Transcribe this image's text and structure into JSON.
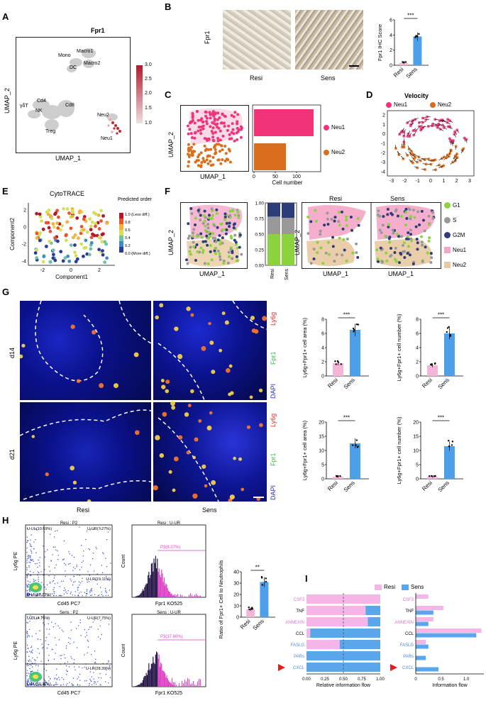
{
  "panel_letters": [
    "A",
    "B",
    "C",
    "D",
    "E",
    "F",
    "G",
    "H",
    "I"
  ],
  "A": {
    "title": "Fpr1",
    "xlabel": "UMAP_1",
    "ylabel": "UMAP_2",
    "cluster_labels": [
      "Macro1",
      "Mono",
      "Macro2",
      "DC",
      "Cd4",
      "γδT",
      "NK",
      "Cd8",
      "Treg",
      "Neu2",
      "Neu1"
    ],
    "colorbar_ticks": [
      "3.0",
      "2.5",
      "2.0",
      "1.5",
      "1.0"
    ],
    "colorbar_colors": [
      "#b2182b",
      "#f0e0e0"
    ]
  },
  "B": {
    "row_label": "Fpr1",
    "image_labels": [
      "Resi",
      "Sens"
    ],
    "chart_data": {
      "type": "bar",
      "categories": [
        "Resi",
        "Sens"
      ],
      "values": [
        0.3,
        3.8
      ],
      "ylabel": "Fpr1 IHC Score",
      "ylim": [
        0,
        6
      ],
      "yticks": [
        "0",
        "2",
        "4",
        "6"
      ],
      "significance": "***",
      "colors": [
        "#f4b6d6",
        "#4c9fe8"
      ]
    }
  },
  "C": {
    "ylabel": "UMAP_2",
    "xlabel": "UMAP_1",
    "legend": [
      "Neu1",
      "Neu2"
    ],
    "colors": [
      "#f2337a",
      "#d96f1d"
    ],
    "chart_data": {
      "type": "bar",
      "orientation": "horizontal",
      "categories": [
        "Neu1",
        "Neu2"
      ],
      "values": [
        140,
        75
      ],
      "xlabel": "Cell number",
      "xticks": [
        "0",
        "50",
        "100"
      ],
      "xlim": [
        0,
        150
      ]
    }
  },
  "D": {
    "title": "Velocity",
    "legend": [
      "Neu1",
      "Neu2"
    ],
    "xticks": [
      "-3",
      "-2",
      "-1",
      "0",
      "1",
      "2",
      "3"
    ],
    "yticks": [
      "2",
      "1",
      "0",
      "-1",
      "-2",
      "-3",
      "-4"
    ]
  },
  "E": {
    "title": "CytoTRACE",
    "xlabel": "Component1",
    "ylabel": "Component2",
    "xticks": [
      "-2",
      "0",
      "2"
    ],
    "yticks": [
      "2",
      "0",
      "-2",
      "-4"
    ],
    "legend_title": "Predicted order",
    "legend_ticks": [
      "1.0 (Less diff.)",
      "0.8",
      "0.6",
      "0.4",
      "0.2",
      "0.0 (More diff.)"
    ]
  },
  "F": {
    "ylabel": "UMAP_2",
    "xlabel": "UMAP_1",
    "split_titles": [
      "Resi",
      "Sens"
    ],
    "legend": [
      "G1",
      "S",
      "G2M",
      "Neu1",
      "Neu2"
    ],
    "legend_colors": [
      "#8bd33c",
      "#999999",
      "#2d3d7a",
      "#f4a6c8",
      "#e8c9a0"
    ],
    "chart_data": {
      "type": "bar",
      "stacked": true,
      "categories": [
        "Resi",
        "Sens"
      ],
      "series": [
        {
          "name": "G1",
          "values": [
            0.5,
            0.5
          ]
        },
        {
          "name": "S",
          "values": [
            0.28,
            0.26
          ]
        },
        {
          "name": "G2M",
          "values": [
            0.22,
            0.24
          ]
        }
      ],
      "yticks": [
        "1.00",
        "0.75",
        "0.50",
        "0.25",
        "0.00"
      ]
    }
  },
  "G": {
    "row_labels": [
      "d14",
      "d21"
    ],
    "channel_labels": [
      "Ly6g",
      "Fpr1",
      "DAPI"
    ],
    "column_labels": [
      "Resi",
      "Sens"
    ],
    "charts": [
      {
        "type": "bar",
        "categories": [
          "Resi",
          "Sens"
        ],
        "values": [
          1.8,
          6.5
        ],
        "ylabel": "Ly6g+Fpr1+ cell area (%)",
        "yticks": [
          "0",
          "2",
          "4",
          "6",
          "8"
        ],
        "ylim": [
          0,
          8
        ],
        "significance": "***"
      },
      {
        "type": "bar",
        "categories": [
          "Resi",
          "Sens"
        ],
        "values": [
          1.5,
          6.0
        ],
        "ylabel": "Ly6g+Fpr1+ cell number (%)",
        "yticks": [
          "0",
          "2",
          "4",
          "6",
          "8"
        ],
        "ylim": [
          0,
          8
        ],
        "significance": "***"
      },
      {
        "type": "bar",
        "categories": [
          "Resi",
          "Sens"
        ],
        "values": [
          0.7,
          12.5
        ],
        "ylabel": "Ly6g+Fpr1+ cell area (%)",
        "yticks": [
          "0",
          "5",
          "10",
          "15",
          "20"
        ],
        "ylim": [
          0,
          20
        ],
        "significance": "***"
      },
      {
        "type": "bar",
        "categories": [
          "Resi",
          "Sens"
        ],
        "values": [
          0.7,
          11.5
        ],
        "ylabel": "Ly6g+Fpr1+ cell number (%)",
        "yticks": [
          "0",
          "5",
          "10",
          "15",
          "20"
        ],
        "ylim": [
          0,
          20
        ],
        "significance": "***"
      }
    ]
  },
  "H": {
    "flow_plots": [
      {
        "title": "Resi : P2",
        "ul": "U-UL(10.59%)",
        "ur": "U-UR(7.27%)",
        "ll": "U-LL(63.03%)",
        "lr": "U-LR(19.11%)"
      },
      {
        "title": "Sens : P2",
        "ul": "U-UL(4.76%)",
        "ur": "U-UR(7.75%)",
        "ll": "U-LL(59.11%)",
        "lr": "U-LR(28.39%)"
      }
    ],
    "flow_xlabel": "Cd45 PC7",
    "flow_ylabel": "Ly6g PE",
    "hist_plots": [
      {
        "title": "Resi : U-UR",
        "gate": "P3(8.07%)"
      },
      {
        "title": "Sens : U-UR",
        "gate": "P3(37.60%)"
      }
    ],
    "hist_xlabel": "Fpr1 KO525",
    "hist_ylabel": "Count",
    "chart_data": {
      "type": "bar",
      "categories": [
        "Resi",
        "Sens"
      ],
      "values": [
        7,
        31
      ],
      "ylabel": "Ratio of Fpr1+ Cell to Neutrophils (%)",
      "yticks": [
        "0",
        "10",
        "20",
        "30",
        "40"
      ],
      "ylim": [
        0,
        40
      ],
      "significance": "**"
    }
  },
  "I": {
    "legend": [
      "Resi",
      "Sens"
    ],
    "colors": [
      "#f4b6e6",
      "#5aa6ea"
    ],
    "chart_data": [
      {
        "type": "bar",
        "stacked": true,
        "orientation": "horizontal",
        "categories": [
          "CSF3",
          "TNF",
          "ANNEXIN",
          "CCL",
          "FASLG",
          "PARs",
          "CXCL"
        ],
        "series": [
          {
            "name": "Resi",
            "values": [
              1.0,
              0.8,
              0.83,
              0.05,
              0.45,
              0.0,
              0.0
            ]
          },
          {
            "name": "Sens",
            "values": [
              0.0,
              0.2,
              0.17,
              0.95,
              0.55,
              1.0,
              1.0
            ]
          }
        ],
        "xlabel": "Relative information flow",
        "xticks": [
          "0.00",
          "0.25",
          "0.50",
          "0.75",
          "1.00"
        ]
      },
      {
        "type": "bar",
        "orientation": "horizontal",
        "categories": [
          "CSF3",
          "TNF",
          "ANNEXIN",
          "CCL",
          "FASLG",
          "PARs",
          "CXCL"
        ],
        "series": [
          {
            "name": "Resi",
            "values": [
              0.25,
              0.55,
              0.35,
              1.3,
              0.2,
              0.0,
              0.0
            ]
          },
          {
            "name": "Sens",
            "values": [
              0.0,
              0.35,
              0.25,
              1.2,
              0.25,
              0.2,
              0.45
            ]
          }
        ],
        "xlabel": "Information flow",
        "xticks": [
          "0",
          "0.5",
          "1.0"
        ]
      }
    ]
  }
}
